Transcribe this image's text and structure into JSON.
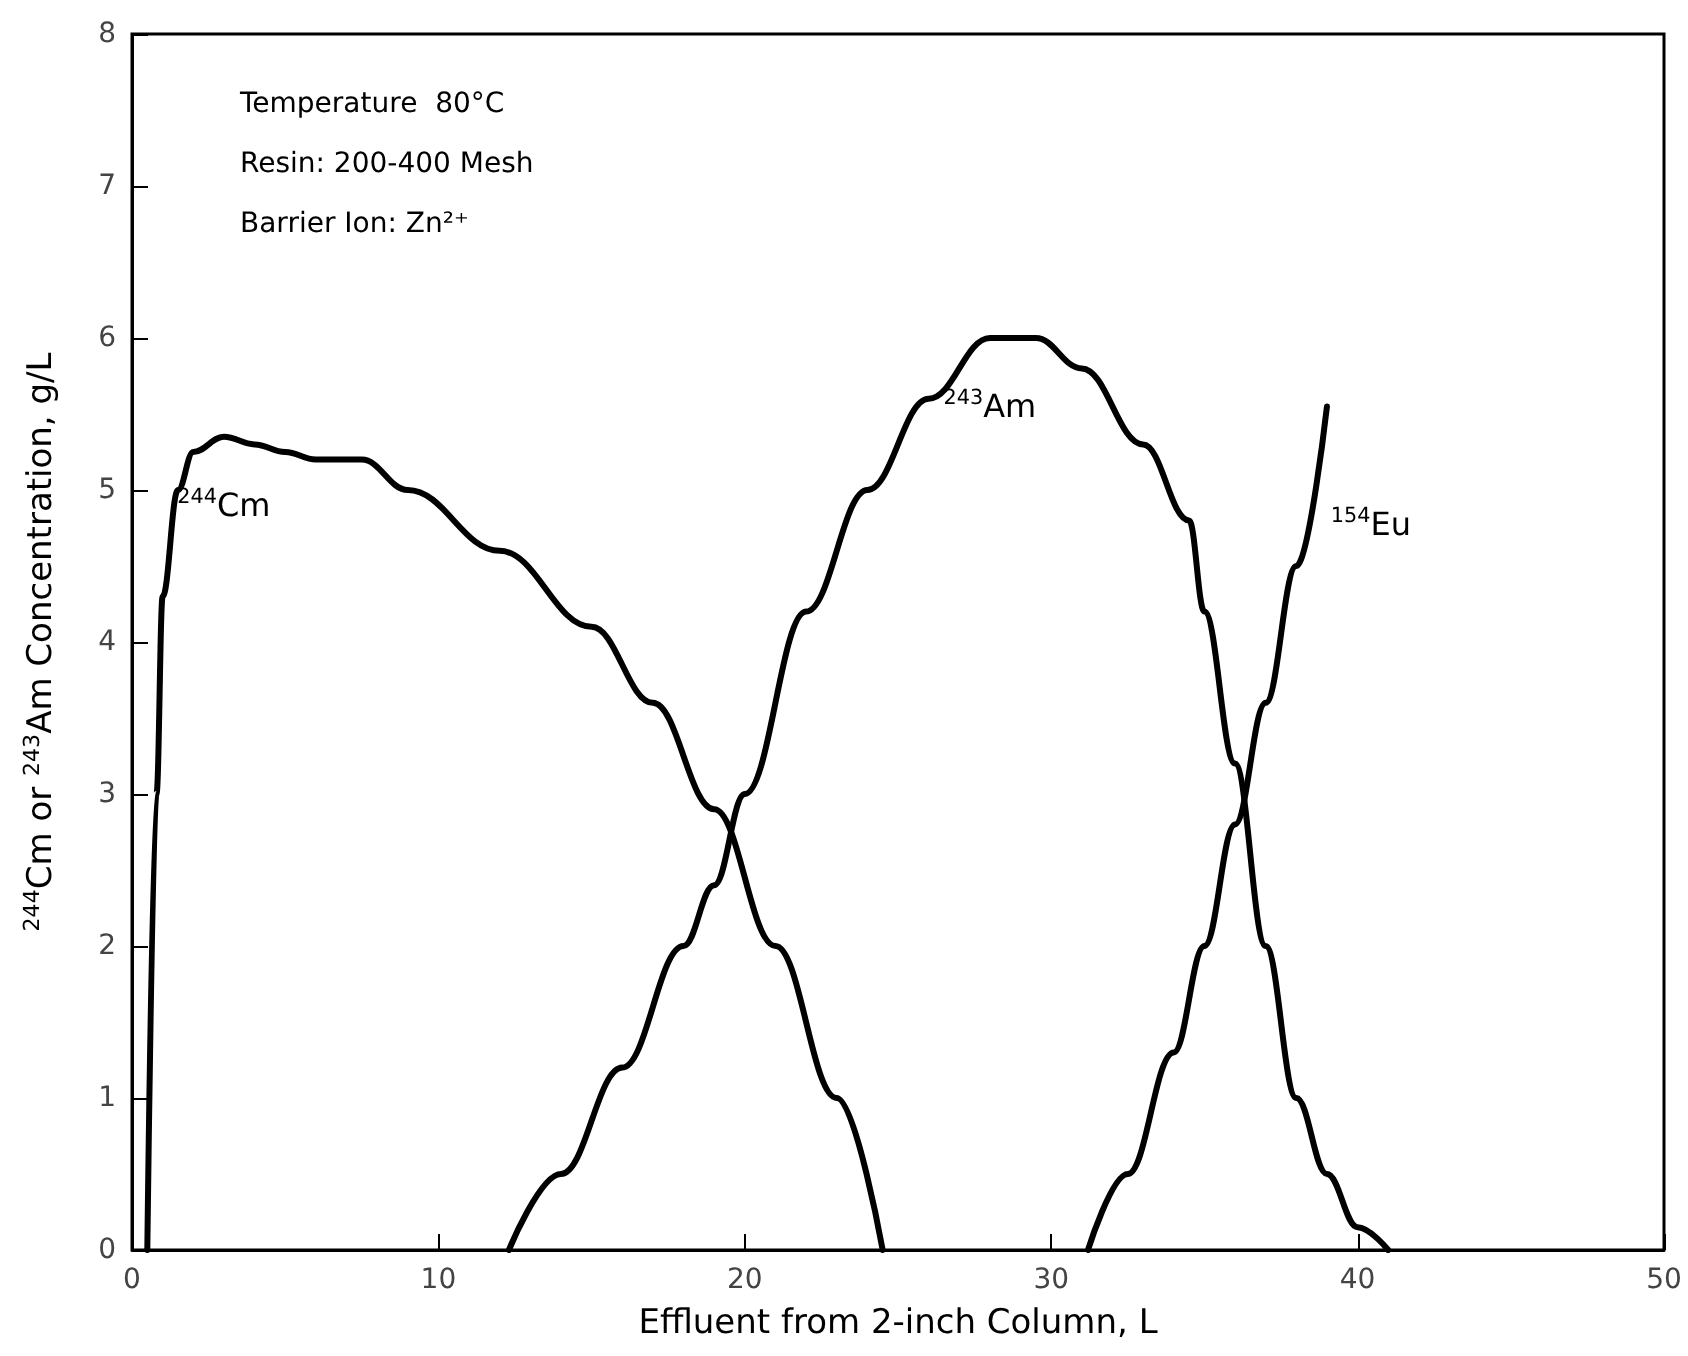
{
  "chart_data": {
    "type": "line",
    "xlabel": "Effluent from 2-inch Column, L",
    "ylabel": "$^{244}$Cm or $^{243}$Am Concentration, g/L",
    "annotations": [
      "Temperature  80°C",
      "Resin: 200-400 Mesh",
      "Barrier Ion: Zn²⁺"
    ],
    "xlim": [
      0,
      50
    ],
    "xticks": [
      0,
      10,
      20,
      30,
      40,
      50
    ],
    "ylim": [
      0,
      8
    ],
    "yticks": [
      0,
      1,
      2,
      3,
      4,
      5,
      6,
      7,
      8
    ],
    "grid": false,
    "legend": false,
    "marker": "none",
    "line_style": "solid",
    "series": [
      {
        "name": "$^{244}$Cm",
        "color": "#000000",
        "x": [
          0.5,
          0.8,
          1,
          1.5,
          2,
          3,
          4,
          5,
          6,
          7.5,
          9,
          12,
          15,
          17,
          19,
          21,
          23,
          24.5
        ],
        "values": [
          0,
          3,
          4.3,
          5,
          5.25,
          5.35,
          5.3,
          5.25,
          5.2,
          5.2,
          5.0,
          4.6,
          4.1,
          3.6,
          2.9,
          2.0,
          1.0,
          0
        ]
      },
      {
        "name": "$^{243}$Am",
        "color": "#000000",
        "x": [
          12.3,
          14,
          16,
          18,
          19,
          20,
          22,
          24,
          26,
          28,
          29.5,
          31,
          33,
          34.5,
          35,
          36,
          37,
          38,
          39,
          40,
          41
        ],
        "values": [
          0,
          0.5,
          1.2,
          2.0,
          2.4,
          3.0,
          4.2,
          5.0,
          5.6,
          6.0,
          6.0,
          5.8,
          5.3,
          4.8,
          4.2,
          3.2,
          2.0,
          1.0,
          0.5,
          0.15,
          0
        ]
      },
      {
        "name": "$^{154}$Eu",
        "color": "#000000",
        "x": [
          31.2,
          32.5,
          34,
          35,
          36,
          37,
          38,
          39
        ],
        "values": [
          0,
          0.5,
          1.3,
          2.0,
          2.8,
          3.6,
          4.5,
          5.55
        ]
      }
    ]
  }
}
